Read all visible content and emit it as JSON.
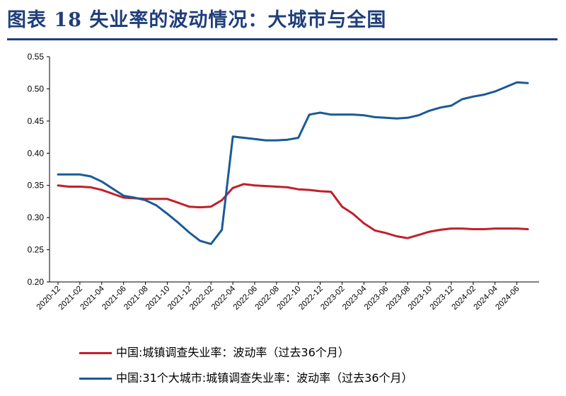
{
  "figure": {
    "title": "图表 18   失业率的波动情况：大城市与全国"
  },
  "chart_data": {
    "type": "line",
    "x": [
      "2020-12",
      "2021-01",
      "2021-02",
      "2021-03",
      "2021-04",
      "2021-05",
      "2021-06",
      "2021-07",
      "2021-08",
      "2021-09",
      "2021-10",
      "2021-11",
      "2021-12",
      "2022-01",
      "2022-02",
      "2022-03",
      "2022-04",
      "2022-05",
      "2022-06",
      "2022-07",
      "2022-08",
      "2022-09",
      "2022-10",
      "2022-11",
      "2022-12",
      "2023-01",
      "2023-02",
      "2023-03",
      "2023-04",
      "2023-05",
      "2023-06",
      "2023-07",
      "2023-08",
      "2023-09",
      "2023-10",
      "2023-11",
      "2023-12",
      "2024-01",
      "2024-02",
      "2024-03",
      "2024-04",
      "2024-05",
      "2024-06",
      "2024-07"
    ],
    "x_tick_labels": [
      "2020-12",
      "2021-02",
      "2021-04",
      "2021-06",
      "2021-08",
      "2021-10",
      "2021-12",
      "2022-02",
      "2022-04",
      "2022-06",
      "2022-08",
      "2022-10",
      "2022-12",
      "2023-02",
      "2023-04",
      "2023-06",
      "2023-08",
      "2023-10",
      "2023-12",
      "2024-02",
      "2024-04",
      "2024-06"
    ],
    "y_ticks": [
      "0.20",
      "0.25",
      "0.30",
      "0.35",
      "0.40",
      "0.45",
      "0.50",
      "0.55"
    ],
    "ylim": [
      0.2,
      0.55
    ],
    "grid": false,
    "legend_position": "bottom",
    "series": [
      {
        "name": "中国:城镇调查失业率：波动率（过去36个月）",
        "color": "#c0202a",
        "values": [
          0.35,
          0.348,
          0.348,
          0.347,
          0.343,
          0.337,
          0.331,
          0.33,
          0.329,
          0.329,
          0.329,
          0.323,
          0.317,
          0.316,
          0.317,
          0.327,
          0.346,
          0.352,
          0.35,
          0.349,
          0.348,
          0.347,
          0.344,
          0.343,
          0.341,
          0.34,
          0.317,
          0.306,
          0.291,
          0.28,
          0.276,
          0.271,
          0.268,
          0.273,
          0.278,
          0.281,
          0.283,
          0.283,
          0.282,
          0.282,
          0.283,
          0.283,
          0.283,
          0.282
        ]
      },
      {
        "name": "中国:31个大城市:城镇调查失业率：波动率（过去36个月）",
        "color": "#1a5a96",
        "values": [
          0.367,
          0.367,
          0.367,
          0.364,
          0.356,
          0.345,
          0.334,
          0.331,
          0.327,
          0.319,
          0.306,
          0.292,
          0.277,
          0.264,
          0.259,
          0.281,
          0.426,
          0.424,
          0.422,
          0.42,
          0.42,
          0.421,
          0.424,
          0.46,
          0.463,
          0.46,
          0.46,
          0.46,
          0.459,
          0.456,
          0.455,
          0.454,
          0.455,
          0.459,
          0.466,
          0.471,
          0.474,
          0.484,
          0.488,
          0.491,
          0.496,
          0.503,
          0.51,
          0.509
        ]
      }
    ]
  }
}
